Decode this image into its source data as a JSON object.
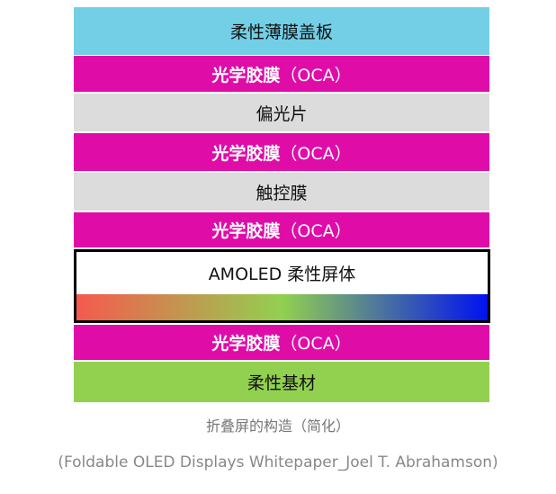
{
  "layers": [
    {
      "label": "柔性薄膜盖板",
      "color": "#72cfe6"
    },
    {
      "label_bold": "光学胶膜",
      "label_rest": "（OCA）",
      "color": "#e00ca8"
    },
    {
      "label": "偏光片",
      "color": "#dcdcdc"
    },
    {
      "label_bold": "光学胶膜",
      "label_rest": "（OCA）",
      "color": "#e00ca8"
    },
    {
      "label": "触控膜",
      "color": "#dcdcdc"
    },
    {
      "label_bold": "光学胶膜",
      "label_rest": "（OCA）",
      "color": "#e00ca8"
    },
    {
      "label": "AMOLED 柔性屏体",
      "gradient": [
        "#f55a4e",
        "#92d050",
        "#0012f0"
      ]
    },
    {
      "label_bold": "光学胶膜",
      "label_rest": "（OCA）",
      "color": "#e00ca8"
    },
    {
      "label": "柔性基材",
      "color": "#92d050"
    }
  ],
  "caption": "折叠屏的构造（简化）",
  "source": "(Foldable OLED Displays Whitepaper_Joel T. Abrahamson)"
}
